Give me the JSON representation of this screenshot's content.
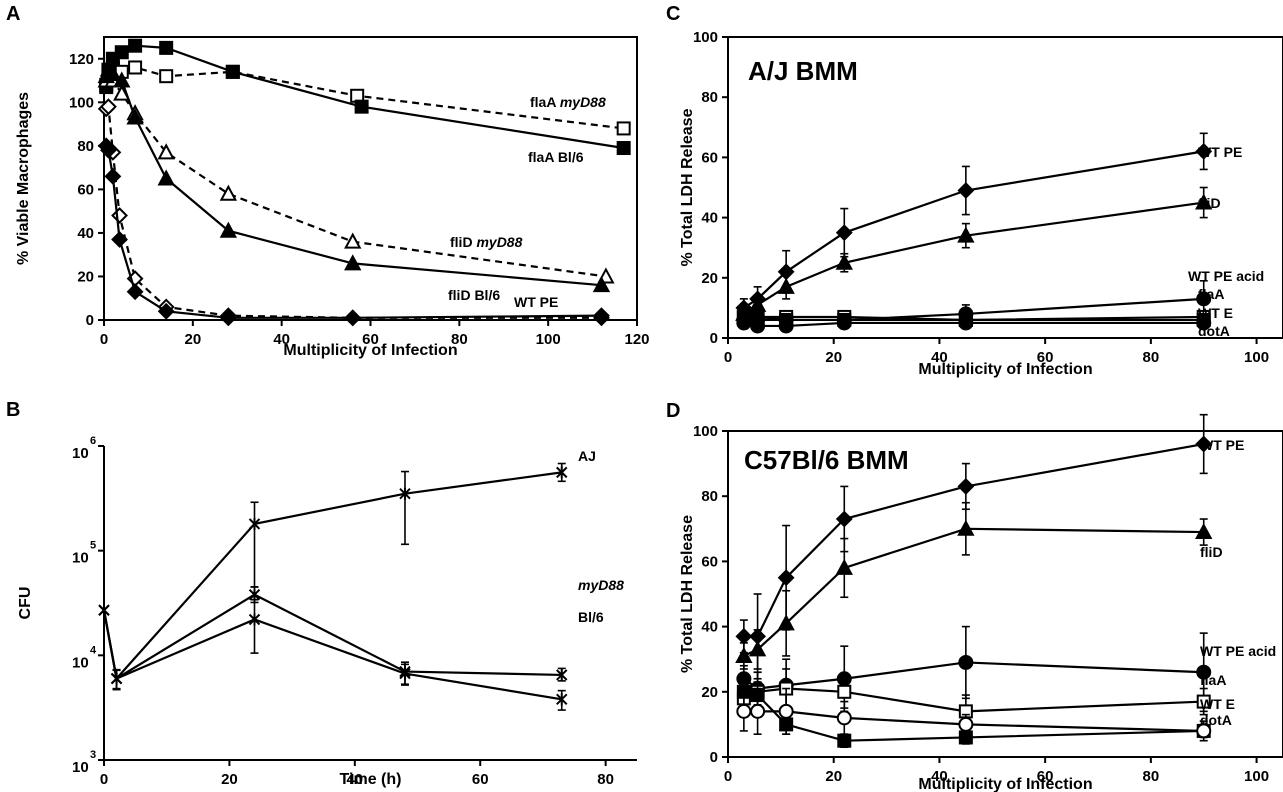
{
  "chart_data": [
    {
      "panel": "A",
      "type": "line",
      "xlabel": "Multiplicity of Infection",
      "ylabel": "% Viable Macrophages",
      "xlim": [
        0,
        120
      ],
      "ylim": [
        0,
        130
      ],
      "xticks": [
        0,
        20,
        40,
        60,
        80,
        100,
        120
      ],
      "yticks": [
        0,
        20,
        40,
        60,
        80,
        100,
        120
      ],
      "series": [
        {
          "name": "flaA myD88",
          "label_main": "flaA ",
          "label_italic": "myD88",
          "marker": "square",
          "filled": false,
          "dashed": true,
          "x": [
            0.5,
            1,
            2,
            4,
            7,
            14,
            29,
            57,
            117
          ],
          "y": [
            108,
            113,
            116,
            114,
            116,
            112,
            114,
            103,
            88
          ]
        },
        {
          "name": "flaA Bl/6",
          "label_main": "flaA Bl/6",
          "label_italic": "",
          "marker": "square",
          "filled": true,
          "dashed": false,
          "x": [
            0.5,
            1,
            2,
            4,
            7,
            14,
            29,
            58,
            117
          ],
          "y": [
            107,
            115,
            120,
            123,
            126,
            125,
            114,
            98,
            79
          ]
        },
        {
          "name": "fliD myD88",
          "label_main": "fliD ",
          "label_italic": "myD88",
          "marker": "triangle",
          "filled": false,
          "dashed": true,
          "x": [
            0.5,
            1,
            2,
            4,
            7,
            14,
            28,
            56,
            113
          ],
          "y": [
            110,
            113,
            110,
            104,
            95,
            77,
            58,
            36,
            20
          ]
        },
        {
          "name": "fliD Bl/6",
          "label_main": "fliD Bl/6",
          "label_italic": "",
          "marker": "triangle",
          "filled": true,
          "dashed": false,
          "x": [
            0.5,
            1,
            2,
            4,
            7,
            14,
            28,
            56,
            112
          ],
          "y": [
            112,
            115,
            113,
            110,
            93,
            65,
            41,
            26,
            16
          ]
        },
        {
          "name": "WT PE (myD88)",
          "label_main": "",
          "label_italic": "",
          "marker": "diamond",
          "filled": false,
          "dashed": true,
          "x": [
            0.5,
            1,
            2,
            3.5,
            7,
            14,
            28,
            56,
            112
          ],
          "y": [
            97,
            98,
            77,
            48,
            19,
            6,
            2,
            1,
            1
          ]
        },
        {
          "name": "WT PE",
          "label_main": "WT PE",
          "label_italic": "",
          "marker": "diamond",
          "filled": true,
          "dashed": false,
          "x": [
            0.5,
            1,
            2,
            3.5,
            7,
            14,
            28,
            56,
            112
          ],
          "y": [
            80,
            78,
            66,
            37,
            13,
            4,
            1,
            1,
            2
          ]
        }
      ]
    },
    {
      "panel": "B",
      "type": "line",
      "xlabel": "Time (h)",
      "ylabel": "CFU",
      "xlim": [
        0,
        85
      ],
      "ylim_log10": [
        3,
        6
      ],
      "yscale": "log",
      "xticks": [
        0,
        20,
        40,
        60,
        80
      ],
      "yticks": [
        {
          "base": "10",
          "exp": "3"
        },
        {
          "base": "10",
          "exp": "4"
        },
        {
          "base": "10",
          "exp": "5"
        },
        {
          "base": "10",
          "exp": "6"
        }
      ],
      "series": [
        {
          "name": "AJ",
          "label_main": "AJ",
          "label_italic": "",
          "x": [
            0,
            2,
            24,
            48,
            73
          ],
          "y": [
            27000,
            6000,
            180000,
            350000,
            560000
          ],
          "err_low": [
            27000,
            4700,
            45000,
            115000,
            460000
          ],
          "err_high": [
            27000,
            7300,
            290000,
            570000,
            680000
          ]
        },
        {
          "name": "myD88",
          "label_main": "",
          "label_italic": "myD88",
          "x": [
            0,
            2,
            24,
            48,
            73
          ],
          "y": [
            27000,
            6000,
            38000,
            7000,
            6500
          ],
          "err_low": [
            27000,
            4800,
            32000,
            5300,
            5700
          ],
          "err_high": [
            27000,
            7200,
            45000,
            8600,
            7500
          ]
        },
        {
          "name": "Bl/6",
          "label_main": "Bl/6",
          "label_italic": "",
          "x": [
            0,
            2,
            24,
            48,
            73
          ],
          "y": [
            27000,
            6000,
            22000,
            6700,
            3800
          ],
          "err_low": [
            27000,
            4800,
            10500,
            5200,
            3000
          ],
          "err_high": [
            27000,
            7200,
            34000,
            8200,
            4600
          ]
        }
      ]
    },
    {
      "panel": "C",
      "type": "line",
      "title": "A/J BMM",
      "xlabel": "Multiplicity of Infection",
      "ylabel": "% Total LDH Release",
      "xlim": [
        0,
        105
      ],
      "ylim": [
        0,
        100
      ],
      "xticks": [
        0,
        20,
        40,
        60,
        80,
        100
      ],
      "yticks": [
        0,
        20,
        40,
        60,
        80,
        100
      ],
      "series": [
        {
          "name": "WT PE",
          "label_main": "WT PE",
          "label_italic": "",
          "marker": "diamond",
          "filled": true,
          "x": [
            3,
            5.6,
            11,
            22,
            45,
            90
          ],
          "y": [
            10,
            13,
            22,
            35,
            49,
            62
          ],
          "err": [
            3,
            4,
            7,
            8,
            8,
            6
          ]
        },
        {
          "name": "fliD",
          "label_main": "fliD",
          "label_italic": "",
          "marker": "triangle",
          "filled": true,
          "x": [
            3,
            5.6,
            11,
            22,
            45,
            90
          ],
          "y": [
            8,
            11,
            17,
            25,
            34,
            45
          ],
          "err": [
            3,
            3,
            4,
            3,
            4,
            5
          ]
        },
        {
          "name": "WT PE acid",
          "label_main": "WT PE acid",
          "label_italic": "",
          "marker": "circle",
          "filled": true,
          "x": [
            3,
            5.6,
            11,
            22,
            45,
            90
          ],
          "y": [
            6,
            6,
            6,
            6,
            8,
            13
          ],
          "err": [
            2,
            2,
            2,
            2,
            3,
            6
          ]
        },
        {
          "name": "flaA",
          "label_main": "flaA",
          "label_italic": "",
          "marker": "square",
          "filled": false,
          "x": [
            3,
            5.6,
            11,
            22,
            45,
            90
          ],
          "y": [
            7,
            7,
            7,
            7,
            6,
            7
          ],
          "err": [
            1,
            1,
            1,
            1,
            1,
            1
          ]
        },
        {
          "name": "WT E",
          "label_main": "WT E",
          "label_italic": "",
          "marker": "square",
          "filled": true,
          "x": [
            3,
            5.6,
            11,
            22,
            45,
            90
          ],
          "y": [
            7,
            7,
            6,
            6,
            6,
            6
          ],
          "err": [
            1,
            1,
            1,
            1,
            1,
            1
          ]
        },
        {
          "name": "dotA",
          "label_main": "dotA",
          "label_italic": "",
          "marker": "circle",
          "filled": true,
          "x": [
            3,
            5.6,
            11,
            22,
            45,
            90
          ],
          "y": [
            5,
            4,
            4,
            5,
            5,
            5
          ],
          "err": [
            1,
            1,
            1,
            1,
            1,
            1
          ]
        }
      ]
    },
    {
      "panel": "D",
      "type": "line",
      "title": "C57Bl/6 BMM",
      "xlabel": "Multiplicity of Infection",
      "ylabel": "% Total LDH Release",
      "xlim": [
        0,
        105
      ],
      "ylim": [
        0,
        100
      ],
      "xticks": [
        0,
        20,
        40,
        60,
        80,
        100
      ],
      "yticks": [
        0,
        20,
        40,
        60,
        80,
        100
      ],
      "series": [
        {
          "name": "WT PE",
          "label_main": "WT PE",
          "label_italic": "",
          "marker": "diamond",
          "filled": true,
          "x": [
            3,
            5.6,
            11,
            22,
            45,
            90
          ],
          "y": [
            37,
            37,
            55,
            73,
            83,
            96
          ],
          "err": [
            5,
            13,
            16,
            10,
            7,
            9
          ]
        },
        {
          "name": "fliD",
          "label_main": "fliD",
          "label_italic": "",
          "marker": "triangle",
          "filled": true,
          "x": [
            3,
            5.6,
            11,
            22,
            45,
            90
          ],
          "y": [
            31,
            33,
            41,
            58,
            70,
            69
          ],
          "err": [
            4,
            6,
            10,
            9,
            8,
            4
          ]
        },
        {
          "name": "WT PE acid",
          "label_main": "WT PE acid",
          "label_italic": "",
          "marker": "circle",
          "filled": true,
          "x": [
            3,
            5.6,
            11,
            22,
            45,
            90
          ],
          "y": [
            24,
            21,
            22,
            24,
            29,
            26
          ],
          "err": [
            4,
            5,
            8,
            10,
            11,
            12
          ]
        },
        {
          "name": "flaA",
          "label_main": "flaA",
          "label_italic": "",
          "marker": "square",
          "filled": false,
          "x": [
            3,
            5.6,
            11,
            22,
            45,
            90
          ],
          "y": [
            18,
            20,
            21,
            20,
            14,
            17
          ],
          "err": [
            5,
            6,
            6,
            5,
            5,
            4
          ]
        },
        {
          "name": "WT E",
          "label_main": "WT E",
          "label_italic": "",
          "marker": "square",
          "filled": true,
          "x": [
            3,
            5.6,
            11,
            22,
            45,
            90
          ],
          "y": [
            20,
            19,
            10,
            5,
            6,
            8
          ],
          "err": [
            4,
            4,
            3,
            2,
            2,
            2
          ]
        },
        {
          "name": "dotA",
          "label_main": "dotA",
          "label_italic": "",
          "marker": "circle",
          "filled": false,
          "x": [
            3,
            5.6,
            11,
            22,
            45,
            90
          ],
          "y": [
            14,
            14,
            14,
            12,
            10,
            8
          ],
          "err": [
            6,
            7,
            7,
            5,
            3,
            3
          ]
        }
      ]
    }
  ]
}
